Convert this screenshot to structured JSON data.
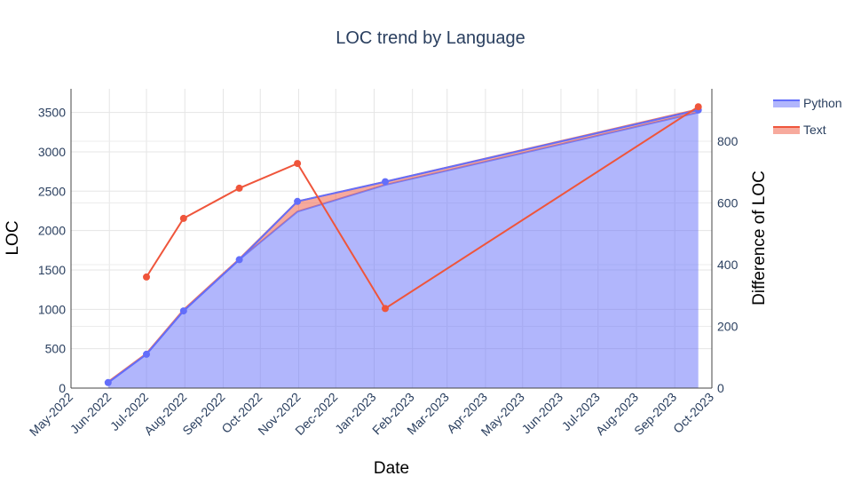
{
  "chart_data": {
    "type": "area",
    "title": "LOC trend by Language",
    "xlabel": "Date",
    "ylabel": "LOC",
    "y2label": "Difference of LOC",
    "x_range": [
      "2022-05-01",
      "2023-10-01"
    ],
    "ylim": [
      0,
      3800
    ],
    "y2lim": [
      0,
      970
    ],
    "x_ticks": [
      "May-2022",
      "Jun-2022",
      "Jul-2022",
      "Aug-2022",
      "Sep-2022",
      "Oct-2022",
      "Nov-2022",
      "Dec-2022",
      "Jan-2023",
      "Feb-2023",
      "Mar-2023",
      "Apr-2023",
      "May-2023",
      "Jun-2023",
      "Jul-2023",
      "Aug-2023",
      "Sep-2023",
      "Oct-2023"
    ],
    "y_ticks": [
      0,
      500,
      1000,
      1500,
      2000,
      2500,
      3000,
      3500
    ],
    "y2_ticks": [
      0,
      200,
      400,
      600,
      800
    ],
    "grid": true,
    "legend_position": "top-right",
    "stacked_area": {
      "x": [
        "2022-05-31",
        "2022-07-01",
        "2022-07-31",
        "2022-09-14",
        "2022-10-31",
        "2023-01-10",
        "2023-09-20"
      ],
      "series": [
        {
          "name": "Python",
          "color": "#636efa",
          "values": [
            70,
            430,
            980,
            1630,
            2240,
            2580,
            3500
          ]
        },
        {
          "name": "Text",
          "color": "#ef553b",
          "values": [
            10,
            10,
            15,
            10,
            130,
            40,
            40
          ]
        }
      ]
    },
    "line_series": [
      {
        "name": "Python",
        "axis": "y",
        "color": "#636efa",
        "x": [
          "2022-05-31",
          "2022-07-01",
          "2022-07-31",
          "2022-09-14",
          "2022-10-31",
          "2023-01-10",
          "2023-09-20"
        ],
        "values": [
          70,
          430,
          980,
          1630,
          2370,
          2620,
          3530
        ]
      },
      {
        "name": "Text",
        "axis": "y2",
        "color": "#ef553b",
        "x": [
          "2022-07-01",
          "2022-07-31",
          "2022-09-14",
          "2022-10-31",
          "2023-01-10",
          "2023-09-20"
        ],
        "values": [
          360,
          550,
          648,
          728,
          258,
          912
        ]
      }
    ]
  }
}
